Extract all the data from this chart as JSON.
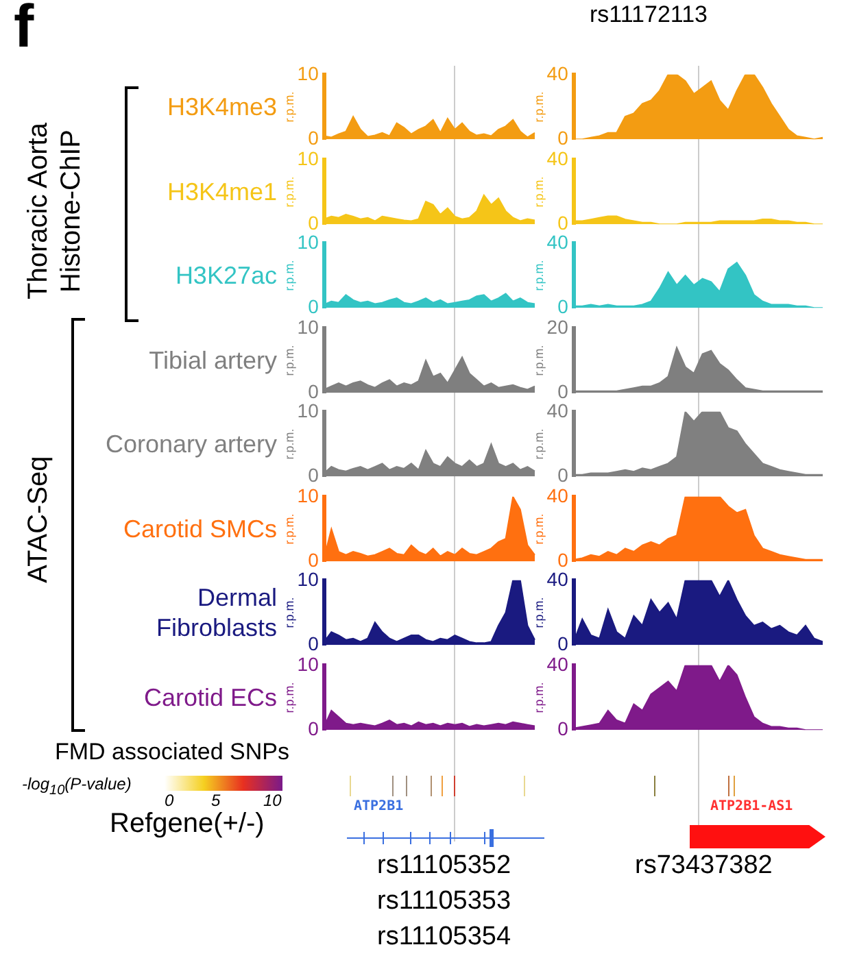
{
  "chart_data": [
    {
      "type": "area",
      "title": "H3K4me3",
      "ylabel": "r.p.m.",
      "color": "#f39c12",
      "categories": [
        null,
        null,
        null,
        null,
        null,
        null,
        null,
        null,
        null,
        null,
        null,
        null,
        null,
        null,
        null,
        null,
        null,
        null,
        null,
        null,
        null,
        null,
        null,
        null,
        null,
        null,
        null,
        null,
        null,
        null
      ],
      "values": [
        0.5,
        0.3,
        0.8,
        1.2,
        3.5,
        1.5,
        0.4,
        0.6,
        1.0,
        0.5,
        2.5,
        1.8,
        0.8,
        1.5,
        2.0,
        3.0,
        1.0,
        3.2,
        1.5,
        2.5,
        1.2,
        0.6,
        0.8,
        0.5,
        1.5,
        2.0,
        3.0,
        1.2,
        0.3,
        1.0
      ],
      "ylim": [
        0,
        10
      ],
      "yticks": [
        0,
        10
      ],
      "tick_labels": "y",
      "grid": false,
      "legend": false,
      "marker": "none"
    },
    {
      "type": "area",
      "ylabel": "r.p.m.",
      "color": "#f39c12",
      "categories": [
        null,
        null,
        null,
        null,
        null,
        null,
        null,
        null,
        null,
        null,
        null,
        null,
        null,
        null,
        null,
        null,
        null,
        null,
        null,
        null,
        null,
        null,
        null,
        null,
        null,
        null,
        null,
        null,
        null,
        null
      ],
      "values": [
        0,
        0,
        1,
        2,
        4,
        4,
        14,
        16,
        22,
        24,
        30,
        40,
        40,
        36,
        28,
        32,
        36,
        24,
        18,
        30,
        40,
        40,
        32,
        22,
        14,
        6,
        2,
        1,
        0,
        1
      ],
      "ylim": [
        0,
        40
      ],
      "yticks": [
        0,
        40
      ],
      "tick_labels": "y",
      "grid": false,
      "legend": false,
      "marker": "none"
    },
    {
      "type": "area",
      "title": "H3K4me1",
      "ylabel": "r.p.m.",
      "color": "#f5c518",
      "categories": [
        null,
        null,
        null,
        null,
        null,
        null,
        null,
        null,
        null,
        null,
        null,
        null,
        null,
        null,
        null,
        null,
        null,
        null,
        null,
        null,
        null,
        null,
        null,
        null,
        null,
        null,
        null,
        null,
        null,
        null
      ],
      "values": [
        0.8,
        1.2,
        1.0,
        1.5,
        1.2,
        0.8,
        1.0,
        0.5,
        1.2,
        1.0,
        0.8,
        0.6,
        0.5,
        0.8,
        3.5,
        3.0,
        1.5,
        2.5,
        1.2,
        0.8,
        1.0,
        2.0,
        4.5,
        3.0,
        4.0,
        2.0,
        1.0,
        0.5,
        0.8,
        0.6
      ],
      "ylim": [
        0,
        10
      ],
      "yticks": [
        0,
        10
      ],
      "tick_labels": "y",
      "grid": false,
      "legend": false,
      "marker": "none"
    },
    {
      "type": "area",
      "ylabel": "r.p.m.",
      "color": "#f5c518",
      "categories": [
        null,
        null,
        null,
        null,
        null,
        null,
        null,
        null,
        null,
        null,
        null,
        null,
        null,
        null,
        null,
        null,
        null,
        null,
        null,
        null,
        null,
        null,
        null,
        null,
        null,
        null,
        null,
        null,
        null,
        null
      ],
      "values": [
        2,
        2,
        3,
        4,
        5,
        5,
        3,
        2,
        1,
        1,
        0,
        0,
        0,
        1,
        1,
        1,
        1,
        2,
        2,
        2,
        2,
        2,
        3,
        3,
        2,
        2,
        1,
        1,
        0,
        0
      ],
      "ylim": [
        0,
        40
      ],
      "yticks": [
        0,
        40
      ],
      "tick_labels": "y",
      "grid": false,
      "legend": false,
      "marker": "none"
    },
    {
      "type": "area",
      "title": "H3K27ac",
      "ylabel": "r.p.m.",
      "color": "#33c4c4",
      "categories": [
        null,
        null,
        null,
        null,
        null,
        null,
        null,
        null,
        null,
        null,
        null,
        null,
        null,
        null,
        null,
        null,
        null,
        null,
        null,
        null,
        null,
        null,
        null,
        null,
        null,
        null,
        null,
        null,
        null,
        null
      ],
      "values": [
        0.5,
        1.0,
        0.8,
        2.0,
        1.2,
        0.8,
        1.0,
        0.6,
        0.8,
        1.2,
        1.5,
        0.8,
        0.6,
        1.0,
        1.5,
        0.8,
        1.2,
        0.6,
        0.8,
        1.0,
        1.2,
        1.8,
        2.0,
        1.0,
        1.5,
        2.2,
        1.0,
        1.5,
        0.8,
        0.6
      ],
      "ylim": [
        0,
        10
      ],
      "yticks": [
        0,
        10
      ],
      "tick_labels": "y",
      "grid": false,
      "legend": false,
      "marker": "none"
    },
    {
      "type": "area",
      "ylabel": "r.p.m.",
      "color": "#33c4c4",
      "categories": [
        null,
        null,
        null,
        null,
        null,
        null,
        null,
        null,
        null,
        null,
        null,
        null,
        null,
        null,
        null,
        null,
        null,
        null,
        null,
        null,
        null,
        null,
        null,
        null,
        null,
        null,
        null,
        null,
        null,
        null
      ],
      "values": [
        1,
        1,
        2,
        1,
        2,
        1,
        1,
        1,
        2,
        4,
        12,
        22,
        14,
        20,
        14,
        18,
        16,
        10,
        24,
        28,
        20,
        8,
        4,
        2,
        2,
        2,
        1,
        1,
        0,
        0
      ],
      "ylim": [
        0,
        40
      ],
      "yticks": [
        0,
        40
      ],
      "tick_labels": "y",
      "grid": false,
      "legend": false,
      "marker": "none"
    },
    {
      "type": "area",
      "title": "Tibial artery",
      "ylabel": "r.p.m.",
      "color": "#7f7f7f",
      "categories": [
        null,
        null,
        null,
        null,
        null,
        null,
        null,
        null,
        null,
        null,
        null,
        null,
        null,
        null,
        null,
        null,
        null,
        null,
        null,
        null,
        null,
        null,
        null,
        null,
        null,
        null,
        null,
        null,
        null,
        null
      ],
      "values": [
        0.5,
        1.0,
        1.5,
        1.0,
        1.5,
        1.8,
        1.2,
        0.8,
        1.5,
        2.0,
        1.0,
        1.5,
        1.2,
        1.8,
        5.0,
        2.5,
        3.0,
        1.5,
        3.5,
        5.5,
        3.0,
        2.0,
        1.0,
        1.5,
        0.8,
        1.0,
        1.2,
        0.8,
        0.5,
        1.0
      ],
      "ylim": [
        0,
        10
      ],
      "yticks": [
        0,
        10
      ],
      "tick_labels": "y",
      "grid": false,
      "legend": false,
      "marker": "none"
    },
    {
      "type": "area",
      "ylabel": "r.p.m.",
      "color": "#7f7f7f",
      "categories": [
        null,
        null,
        null,
        null,
        null,
        null,
        null,
        null,
        null,
        null,
        null,
        null,
        null,
        null,
        null,
        null,
        null,
        null,
        null,
        null,
        null,
        null,
        null,
        null,
        null,
        null,
        null,
        null,
        null,
        null
      ],
      "values": [
        0.5,
        0.5,
        0.5,
        0.5,
        0.5,
        0.5,
        1,
        1.5,
        2,
        2,
        3,
        5,
        14,
        8,
        6,
        12,
        13,
        9,
        7,
        4,
        1.5,
        1,
        0.5,
        0.5,
        0.5,
        0.5,
        0.5,
        0.5,
        0.5,
        0.5
      ],
      "ylim": [
        0,
        20
      ],
      "yticks": [
        0,
        20
      ],
      "tick_labels": "y",
      "grid": false,
      "legend": false,
      "marker": "none"
    },
    {
      "type": "area",
      "title": "Coronary artery",
      "ylabel": "r.p.m.",
      "color": "#808080",
      "categories": [
        null,
        null,
        null,
        null,
        null,
        null,
        null,
        null,
        null,
        null,
        null,
        null,
        null,
        null,
        null,
        null,
        null,
        null,
        null,
        null,
        null,
        null,
        null,
        null,
        null,
        null,
        null,
        null,
        null,
        null
      ],
      "values": [
        0.5,
        1.5,
        1.0,
        0.8,
        1.2,
        1.5,
        1.0,
        1.5,
        2.0,
        1.0,
        1.5,
        1.2,
        2.0,
        1.0,
        4.0,
        2.0,
        1.5,
        3.0,
        2.0,
        1.5,
        2.5,
        1.5,
        2.0,
        5.0,
        2.0,
        1.5,
        2.0,
        1.0,
        1.5,
        0.8
      ],
      "ylim": [
        0,
        10
      ],
      "yticks": [
        0,
        10
      ],
      "tick_labels": "y",
      "grid": false,
      "legend": false,
      "marker": "none"
    },
    {
      "type": "area",
      "ylabel": "r.p.m.",
      "color": "#808080",
      "categories": [
        null,
        null,
        null,
        null,
        null,
        null,
        null,
        null,
        null,
        null,
        null,
        null,
        null,
        null,
        null,
        null,
        null,
        null,
        null,
        null,
        null,
        null,
        null,
        null,
        null,
        null,
        null,
        null,
        null,
        null
      ],
      "values": [
        1,
        1,
        2,
        2,
        2,
        3,
        4,
        3,
        5,
        4,
        6,
        8,
        12,
        40,
        34,
        40,
        40,
        40,
        30,
        28,
        20,
        14,
        8,
        6,
        4,
        3,
        2,
        1,
        1,
        1
      ],
      "ylim": [
        0,
        40
      ],
      "yticks": [
        0,
        40
      ],
      "tick_labels": "y",
      "grid": false,
      "legend": false,
      "marker": "none"
    },
    {
      "type": "area",
      "title": "Carotid SMCs",
      "ylabel": "r.p.m.",
      "color": "#ff7010",
      "categories": [
        null,
        null,
        null,
        null,
        null,
        null,
        null,
        null,
        null,
        null,
        null,
        null,
        null,
        null,
        null,
        null,
        null,
        null,
        null,
        null,
        null,
        null,
        null,
        null,
        null,
        null,
        null,
        null,
        null,
        null
      ],
      "values": [
        0.5,
        5.0,
        1.5,
        1.0,
        1.5,
        1.2,
        0.8,
        1.0,
        1.5,
        2.0,
        1.2,
        1.0,
        2.5,
        1.5,
        1.0,
        2.0,
        0.8,
        1.5,
        1.0,
        2.0,
        1.2,
        1.0,
        1.5,
        2.0,
        3.0,
        3.5,
        10,
        8.0,
        2.5,
        1.0
      ],
      "ylim": [
        0,
        10
      ],
      "yticks": [
        0,
        10
      ],
      "tick_labels": "y",
      "grid": false,
      "legend": false,
      "marker": "none"
    },
    {
      "type": "area",
      "ylabel": "r.p.m.",
      "color": "#ff7010",
      "categories": [
        null,
        null,
        null,
        null,
        null,
        null,
        null,
        null,
        null,
        null,
        null,
        null,
        null,
        null,
        null,
        null,
        null,
        null,
        null,
        null,
        null,
        null,
        null,
        null,
        null,
        null,
        null,
        null,
        null,
        null
      ],
      "values": [
        1,
        2,
        4,
        3,
        6,
        4,
        8,
        6,
        10,
        12,
        10,
        14,
        16,
        40,
        40,
        40,
        40,
        40,
        34,
        30,
        32,
        16,
        8,
        6,
        4,
        3,
        2,
        1,
        1,
        1
      ],
      "ylim": [
        0,
        40
      ],
      "yticks": [
        0,
        40
      ],
      "tick_labels": "y",
      "grid": false,
      "legend": false,
      "marker": "none"
    },
    {
      "type": "area",
      "title": "Dermal Fibroblasts",
      "ylabel": "r.p.m.",
      "color": "#1a1a80",
      "categories": [
        null,
        null,
        null,
        null,
        null,
        null,
        null,
        null,
        null,
        null,
        null,
        null,
        null,
        null,
        null,
        null,
        null,
        null,
        null,
        null,
        null,
        null,
        null,
        null,
        null,
        null,
        null,
        null,
        null,
        null
      ],
      "values": [
        0.5,
        2.0,
        1.5,
        0.8,
        1.0,
        0.5,
        1.0,
        3.5,
        2.0,
        1.0,
        0.5,
        1.0,
        1.5,
        1.5,
        0.8,
        0.5,
        1.0,
        0.8,
        1.5,
        1.0,
        0.5,
        0.3,
        0.3,
        0.5,
        3.0,
        5.0,
        10,
        10,
        3.0,
        0.8
      ],
      "ylim": [
        0,
        10
      ],
      "yticks": [
        0,
        10
      ],
      "tick_labels": "y",
      "grid": false,
      "legend": false,
      "marker": "none"
    },
    {
      "type": "area",
      "ylabel": "r.p.m.",
      "color": "#1a1a80",
      "categories": [
        null,
        null,
        null,
        null,
        null,
        null,
        null,
        null,
        null,
        null,
        null,
        null,
        null,
        null,
        null,
        null,
        null,
        null,
        null,
        null,
        null,
        null,
        null,
        null,
        null,
        null,
        null,
        null,
        null,
        null
      ],
      "values": [
        2,
        16,
        6,
        4,
        22,
        8,
        4,
        18,
        12,
        28,
        20,
        26,
        16,
        40,
        40,
        40,
        40,
        30,
        40,
        28,
        18,
        12,
        14,
        10,
        12,
        8,
        6,
        12,
        4,
        2
      ],
      "ylim": [
        0,
        40
      ],
      "yticks": [
        0,
        40
      ],
      "tick_labels": "y",
      "grid": false,
      "legend": false,
      "marker": "none"
    },
    {
      "type": "area",
      "title": "Carotid ECs",
      "ylabel": "r.p.m.",
      "color": "#7f1a8a",
      "categories": [
        null,
        null,
        null,
        null,
        null,
        null,
        null,
        null,
        null,
        null,
        null,
        null,
        null,
        null,
        null,
        null,
        null,
        null,
        null,
        null,
        null,
        null,
        null,
        null,
        null,
        null,
        null,
        null,
        null,
        null
      ],
      "values": [
        0.5,
        3.0,
        2.0,
        1.0,
        0.8,
        1.0,
        0.8,
        0.6,
        1.0,
        1.5,
        0.8,
        1.0,
        0.6,
        1.2,
        0.8,
        1.0,
        0.6,
        1.0,
        0.8,
        1.0,
        0.5,
        0.8,
        0.6,
        0.8,
        1.0,
        0.8,
        1.2,
        1.0,
        0.8,
        0.6
      ],
      "ylim": [
        0,
        10
      ],
      "yticks": [
        0,
        10
      ],
      "tick_labels": "y",
      "grid": false,
      "legend": false,
      "marker": "none"
    },
    {
      "type": "area",
      "ylabel": "r.p.m.",
      "color": "#7f1a8a",
      "categories": [
        null,
        null,
        null,
        null,
        null,
        null,
        null,
        null,
        null,
        null,
        null,
        null,
        null,
        null,
        null,
        null,
        null,
        null,
        null,
        null,
        null,
        null,
        null,
        null,
        null,
        null,
        null,
        null,
        null,
        null
      ],
      "values": [
        1,
        2,
        3,
        4,
        12,
        6,
        4,
        16,
        12,
        22,
        26,
        30,
        24,
        40,
        40,
        40,
        40,
        30,
        40,
        34,
        20,
        8,
        4,
        2,
        2,
        1,
        1,
        0,
        0,
        0
      ],
      "ylim": [
        0,
        40
      ],
      "yticks": [
        0,
        40
      ],
      "tick_labels": "y",
      "grid": false,
      "legend": false,
      "marker": "none"
    },
    {
      "type": "other",
      "annotations": [
        "f",
        "rs11172113",
        "Thoracic Aorta Histone-ChIP",
        "ATAC-Seq",
        "FMD associated SNPs",
        "-log$_{10}$(P-value)",
        "0",
        "5",
        "10",
        "Refgene(+/-)",
        "ATP2B1",
        "ATP2B1-AS1",
        "rs11105352",
        "rs11105353",
        "rs11105354",
        "rs73437382"
      ]
    }
  ]
}
